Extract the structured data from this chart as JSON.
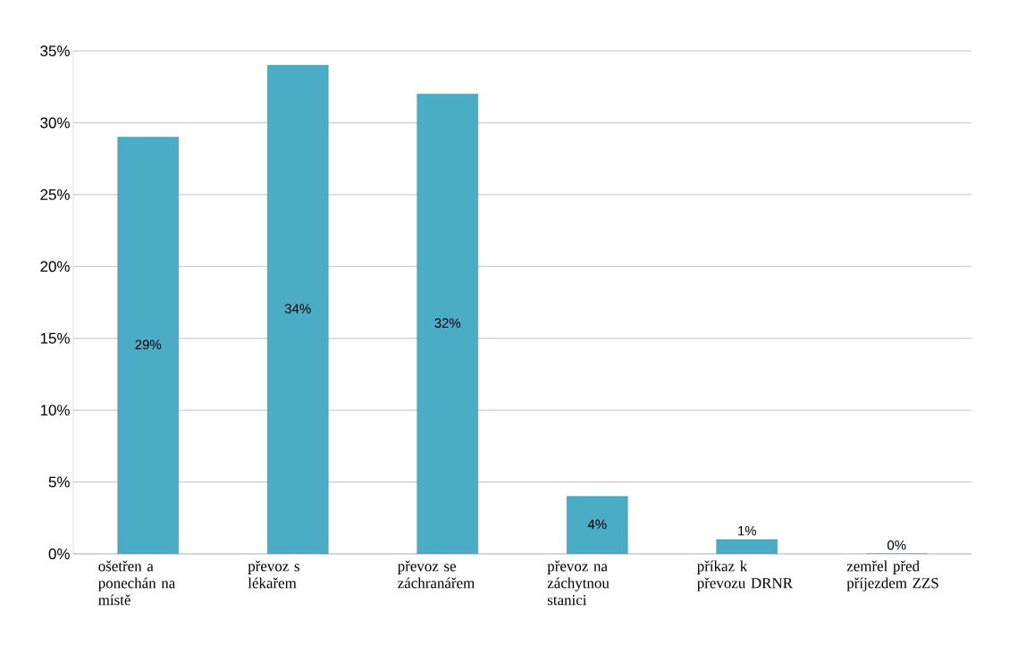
{
  "chart_data": {
    "type": "bar",
    "categories": [
      "ošetřen a ponechán na místě",
      "převoz s lékařem",
      "převoz se záchranářem",
      "převoz na záchytnou stanici",
      "příkaz k převozu DRNR",
      "zemřel před příjezdem ZZS"
    ],
    "values": [
      29,
      34,
      32,
      4,
      1,
      0
    ],
    "value_labels": [
      "29%",
      "34%",
      "32%",
      "4%",
      "1%",
      "0%"
    ],
    "color": "#4bacc6",
    "ylim": [
      0,
      35
    ],
    "yticks": [
      {
        "value": 0,
        "label": "0%"
      },
      {
        "value": 5,
        "label": "5%"
      },
      {
        "value": 10,
        "label": "10%"
      },
      {
        "value": 15,
        "label": "15%"
      },
      {
        "value": 20,
        "label": "20%"
      },
      {
        "value": 25,
        "label": "25%"
      },
      {
        "value": 30,
        "label": "30%"
      },
      {
        "value": 35,
        "label": "35%"
      }
    ],
    "grid": "y"
  }
}
